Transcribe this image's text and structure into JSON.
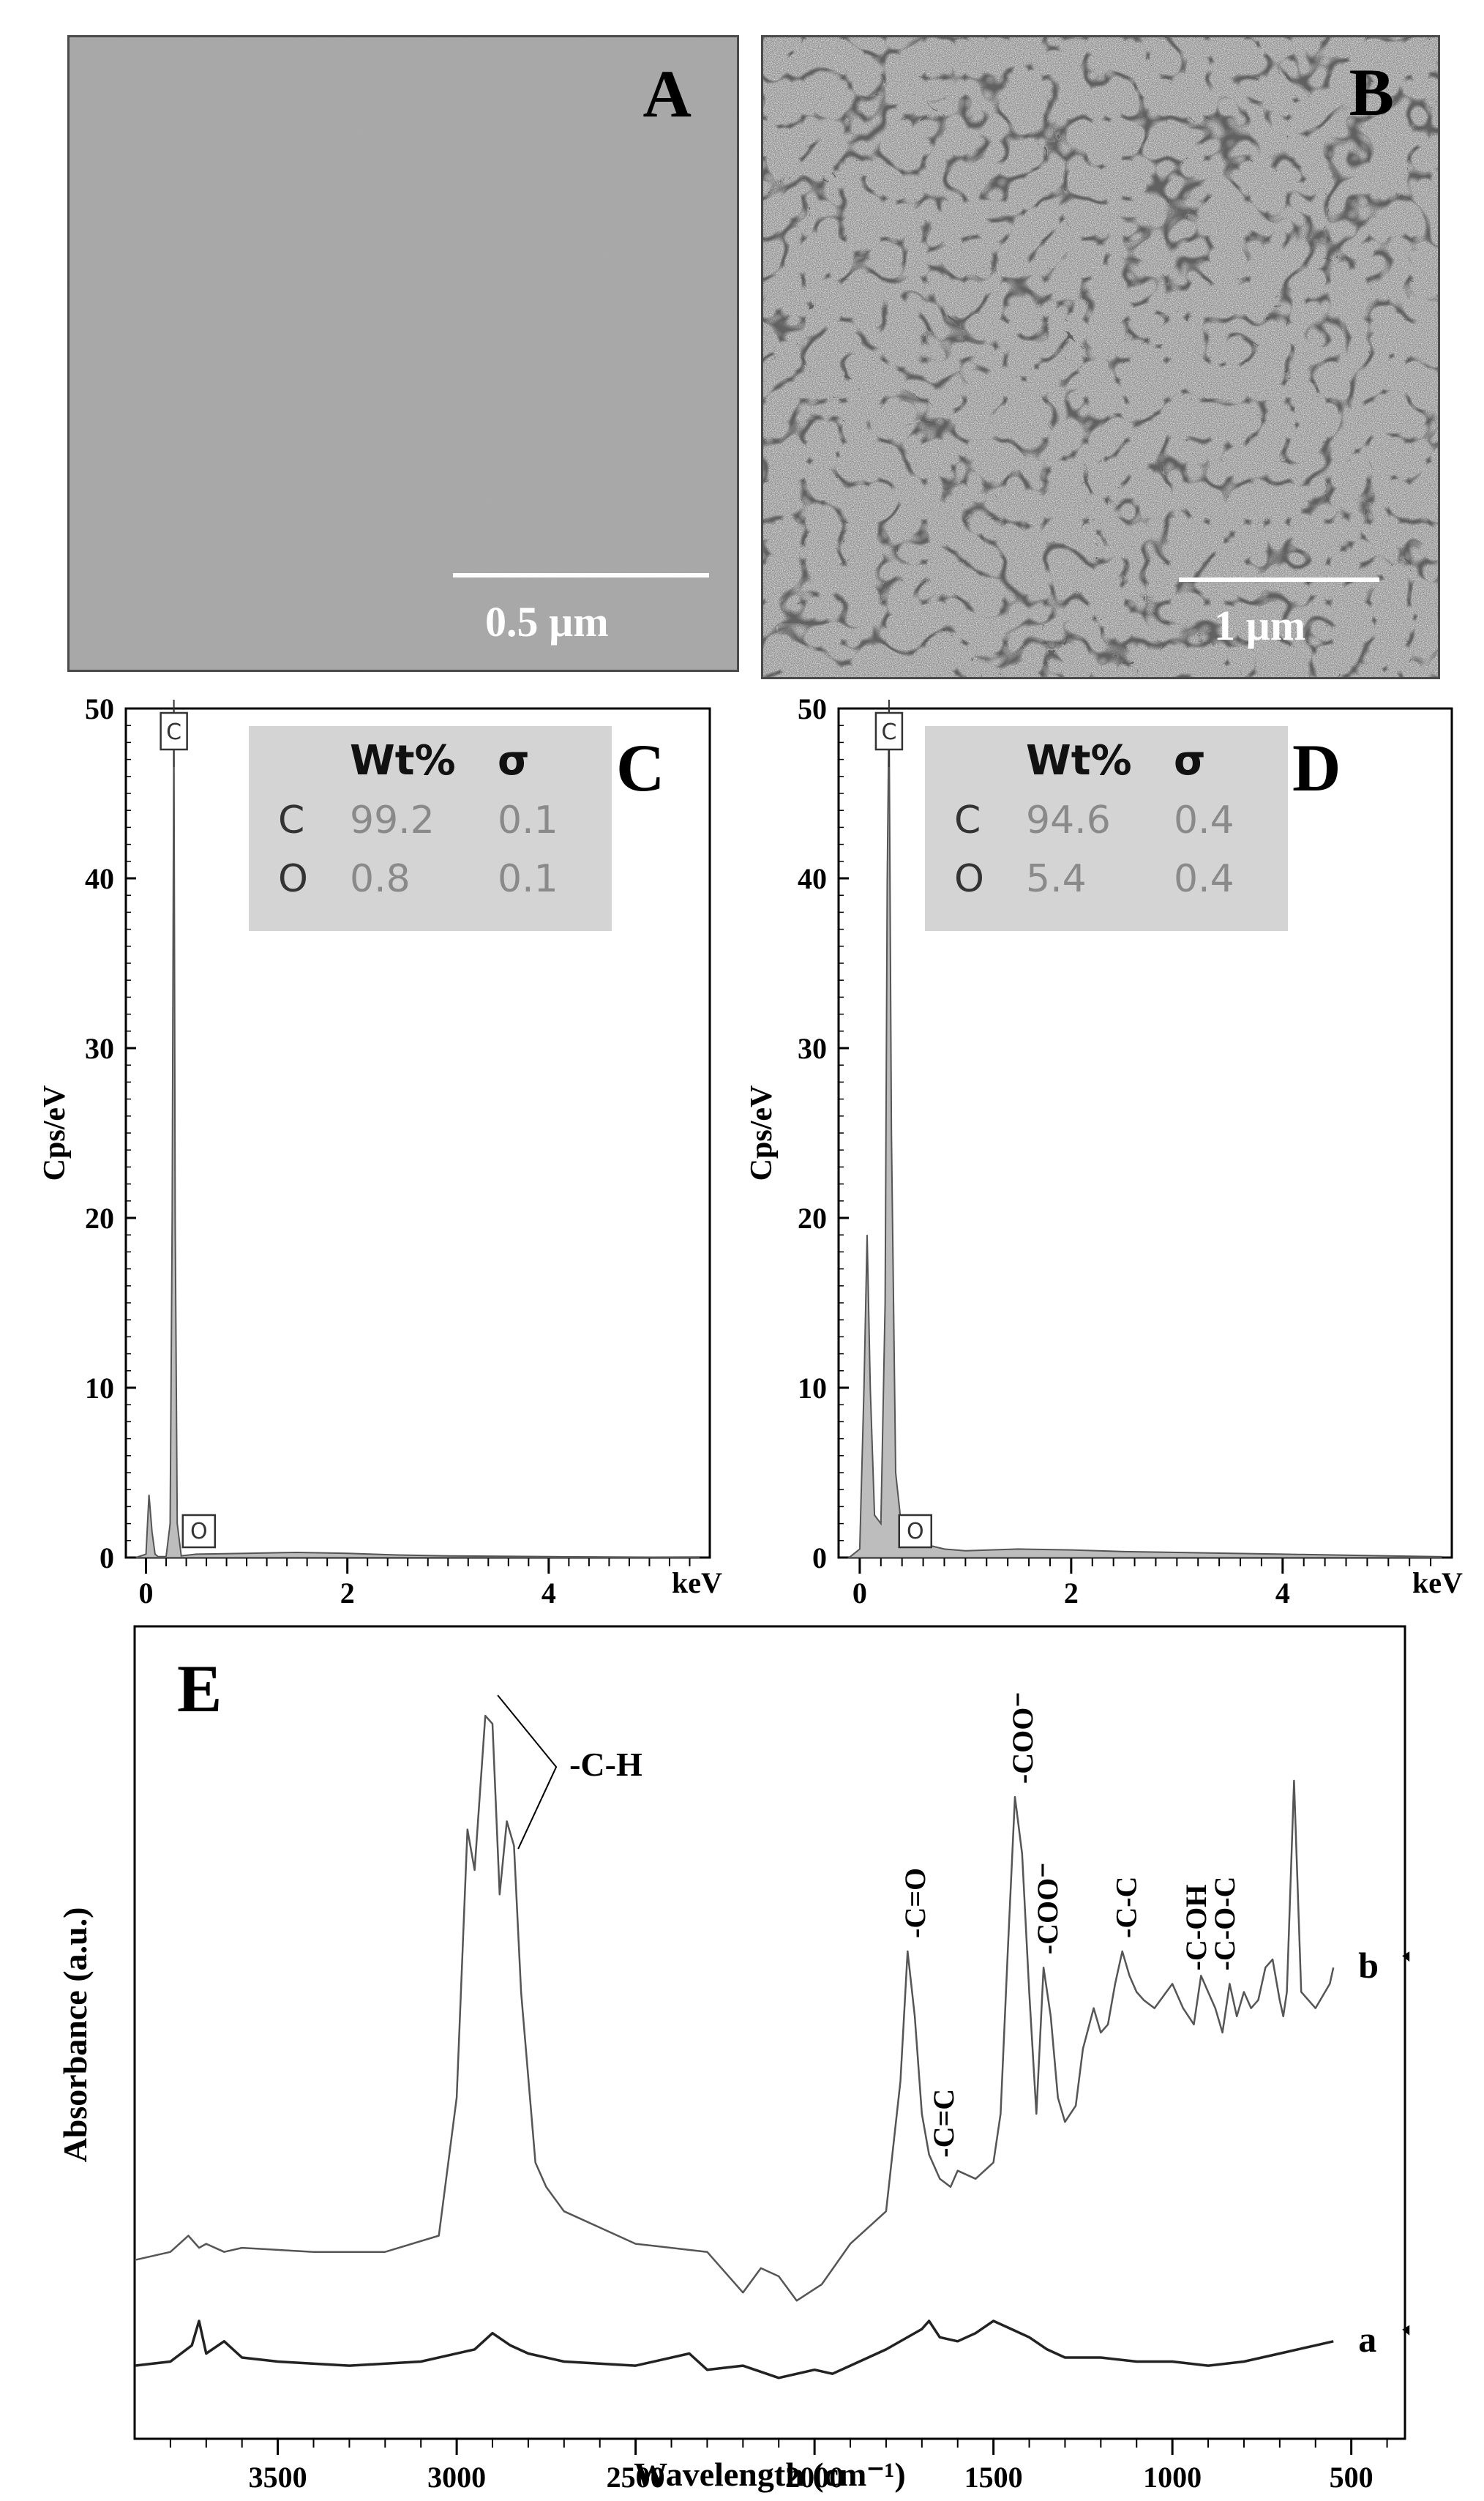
{
  "panel_a": {
    "letter": "A",
    "scale": "0.5 µm"
  },
  "panel_b": {
    "letter": "B",
    "scale": "1 µm"
  },
  "chart_data": [
    {
      "type": "line",
      "panel": "C",
      "ylabel": "Cps/eV",
      "xunit": "keV",
      "xlim": [
        -0.2,
        5.6
      ],
      "ylim": [
        0,
        50
      ],
      "xticks": [
        0,
        2,
        4
      ],
      "yticks": [
        0,
        10,
        20,
        30,
        40,
        50
      ],
      "peaks": [
        {
          "label": "C",
          "x": 0.277,
          "y": 50
        },
        {
          "label": "O",
          "x": 0.525,
          "y": 0.3
        }
      ],
      "series": [
        {
          "x": [
            -0.1,
            0.0,
            0.03,
            0.06,
            0.09,
            0.12,
            0.2,
            0.24,
            0.26,
            0.277,
            0.29,
            0.31,
            0.35,
            0.5,
            1.0,
            1.5,
            2.0,
            2.5,
            3.0,
            4.0,
            5.0,
            5.5
          ],
          "y": [
            0,
            0.2,
            3.7,
            1.5,
            0.2,
            0.05,
            0.05,
            2.0,
            20.0,
            50.0,
            20.0,
            2.0,
            0.1,
            0.2,
            0.25,
            0.3,
            0.25,
            0.15,
            0.1,
            0.05,
            0.02,
            0
          ]
        }
      ],
      "table": {
        "headers": [
          "Wt%",
          "σ"
        ],
        "rows": [
          {
            "element": "C",
            "wt": "99.2",
            "sigma": "0.1"
          },
          {
            "element": "O",
            "wt": "0.8",
            "sigma": "0.1"
          }
        ]
      }
    },
    {
      "type": "area",
      "panel": "D",
      "ylabel": "Cps/eV",
      "xunit": "keV",
      "xlim": [
        -0.2,
        5.6
      ],
      "ylim": [
        0,
        50
      ],
      "xticks": [
        0,
        2,
        4
      ],
      "yticks": [
        0,
        10,
        20,
        30,
        40,
        50
      ],
      "peaks": [
        {
          "label": "C",
          "x": 0.277,
          "y": 50
        },
        {
          "label": "O",
          "x": 0.525,
          "y": 1.2
        }
      ],
      "series": [
        {
          "x": [
            -0.1,
            0.0,
            0.04,
            0.07,
            0.1,
            0.14,
            0.2,
            0.24,
            0.26,
            0.277,
            0.3,
            0.34,
            0.4,
            0.5,
            0.6,
            0.8,
            1.0,
            1.5,
            2.0,
            2.5,
            3.0,
            4.0,
            5.0,
            5.5
          ],
          "y": [
            0,
            0.5,
            10.0,
            19.0,
            10.0,
            2.5,
            2.0,
            15.0,
            40.0,
            50.0,
            25.0,
            5.0,
            1.5,
            1.2,
            0.8,
            0.5,
            0.4,
            0.5,
            0.45,
            0.35,
            0.3,
            0.2,
            0.1,
            0.05
          ]
        }
      ],
      "table": {
        "headers": [
          "Wt%",
          "σ"
        ],
        "rows": [
          {
            "element": "C",
            "wt": "94.6",
            "sigma": "0.4"
          },
          {
            "element": "O",
            "wt": "5.4",
            "sigma": "0.4"
          }
        ]
      }
    },
    {
      "type": "line",
      "panel": "E",
      "xlabel": "Wavelength (cm⁻¹)",
      "ylabel": "Absorbance (a.u.)",
      "xlim": [
        3900,
        350
      ],
      "ylim": [
        0,
        10
      ],
      "xticks": [
        3500,
        3000,
        2500,
        2000,
        1500,
        1000,
        500
      ],
      "series": [
        {
          "name": "b",
          "x": [
            3900,
            3800,
            3750,
            3720,
            3700,
            3650,
            3600,
            3400,
            3200,
            3050,
            3000,
            2970,
            2950,
            2920,
            2900,
            2880,
            2860,
            2840,
            2820,
            2780,
            2750,
            2700,
            2500,
            2300,
            2200,
            2150,
            2100,
            2050,
            1980,
            1900,
            1800,
            1760,
            1740,
            1720,
            1700,
            1680,
            1650,
            1620,
            1600,
            1550,
            1500,
            1480,
            1460,
            1440,
            1420,
            1400,
            1380,
            1360,
            1340,
            1320,
            1300,
            1270,
            1250,
            1220,
            1200,
            1180,
            1160,
            1140,
            1120,
            1100,
            1080,
            1050,
            1000,
            970,
            940,
            920,
            900,
            880,
            860,
            840,
            820,
            800,
            780,
            760,
            740,
            720,
            700,
            690,
            680,
            670,
            660,
            640,
            600,
            560,
            550
          ],
          "y": [
            2.2,
            2.3,
            2.5,
            2.35,
            2.4,
            2.3,
            2.35,
            2.3,
            2.3,
            2.5,
            4.2,
            7.5,
            7.0,
            8.9,
            8.8,
            6.7,
            7.6,
            7.3,
            5.5,
            3.4,
            3.1,
            2.8,
            2.4,
            2.3,
            1.8,
            2.1,
            2.0,
            1.7,
            1.9,
            2.4,
            2.8,
            4.4,
            6.0,
            5.2,
            4.0,
            3.5,
            3.2,
            3.1,
            3.3,
            3.2,
            3.4,
            4.0,
            6.0,
            7.9,
            7.2,
            5.5,
            4.0,
            5.8,
            5.2,
            4.2,
            3.9,
            4.1,
            4.8,
            5.3,
            5.0,
            5.1,
            5.6,
            6.0,
            5.7,
            5.5,
            5.4,
            5.3,
            5.6,
            5.3,
            5.1,
            5.7,
            5.5,
            5.3,
            5.0,
            5.6,
            5.2,
            5.5,
            5.3,
            5.4,
            5.8,
            5.9,
            5.4,
            5.2,
            5.5,
            6.8,
            8.1,
            5.5,
            5.3,
            5.6,
            5.8
          ]
        },
        {
          "name": "a",
          "x": [
            3900,
            3800,
            3740,
            3720,
            3700,
            3650,
            3600,
            3500,
            3300,
            3100,
            2950,
            2900,
            2850,
            2800,
            2700,
            2500,
            2350,
            2300,
            2200,
            2100,
            2000,
            1950,
            1900,
            1800,
            1700,
            1680,
            1650,
            1600,
            1550,
            1500,
            1450,
            1400,
            1350,
            1300,
            1200,
            1100,
            1000,
            900,
            800,
            700,
            650,
            600,
            550
          ],
          "y": [
            0.9,
            0.95,
            1.15,
            1.45,
            1.05,
            1.2,
            1.0,
            0.95,
            0.9,
            0.95,
            1.1,
            1.3,
            1.15,
            1.05,
            0.95,
            0.9,
            1.05,
            0.85,
            0.9,
            0.75,
            0.85,
            0.8,
            0.9,
            1.1,
            1.35,
            1.45,
            1.25,
            1.2,
            1.3,
            1.45,
            1.35,
            1.25,
            1.1,
            1.0,
            1.0,
            0.95,
            0.95,
            0.9,
            0.95,
            1.05,
            1.1,
            1.15,
            1.2
          ]
        }
      ],
      "annotations": [
        {
          "text": "-C-H",
          "x": 2910,
          "y": 8.9
        },
        {
          "text": "-C=O",
          "x": 1720,
          "y": 6.0
        },
        {
          "text": "-C=C",
          "x": 1640,
          "y": 3.3
        },
        {
          "text": "-COO⁻",
          "x": 1420,
          "y": 7.9
        },
        {
          "text": "-COO⁻",
          "x": 1350,
          "y": 5.8
        },
        {
          "text": "-C-C",
          "x": 1130,
          "y": 6.0
        },
        {
          "text": "-C-OH",
          "x": 935,
          "y": 5.6
        },
        {
          "text": "-C-O-C",
          "x": 855,
          "y": 5.6
        }
      ]
    }
  ],
  "colors": {
    "sem_a": "#a7a7a7",
    "sem_b": "#9a9a9a",
    "spectrum_fill": "#bdbdbd",
    "table_bg": "#d4d4d4",
    "table_text": "#8a8a8a"
  }
}
